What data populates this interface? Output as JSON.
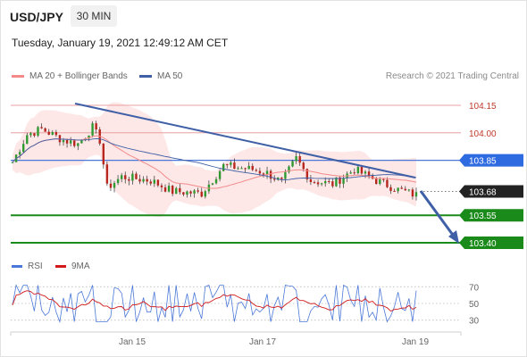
{
  "header": {
    "symbol": "USD/JPY",
    "timeframe": "30 MIN",
    "datetime": "Tuesday, January 19, 2021 12:49:12 AM CET"
  },
  "legend": {
    "ma20_label": "MA 20 + Bollinger Bands",
    "ma50_label": "MA 50",
    "credit": "Research © 2021 Trading Central"
  },
  "rsi_legend": {
    "rsi_label": "RSI",
    "ma9_label": "9MA"
  },
  "colors": {
    "ma20": "#f28a8a",
    "ma50": "#3f5fa6",
    "bollinger_fill": "#fde3e3",
    "bullish_candle": "#2f9a2f",
    "bearish_candle": "#b8261d",
    "support": "#1a8a1a",
    "resistance": "#e8a0a0",
    "pivot": "#4a78d8",
    "current": "#222222",
    "trendline": "#3f5fa6",
    "rsi": "#4a78d8",
    "rsi_ma": "#d11a1a"
  },
  "chart_data": {
    "type": "candlestick",
    "y_range": [
      103.28,
      104.24
    ],
    "levels": [
      {
        "label": "104.15",
        "value": 104.15,
        "kind": "resistance"
      },
      {
        "label": "104.00",
        "value": 104.0,
        "kind": "resistance"
      },
      {
        "label": "103.85",
        "value": 103.85,
        "kind": "pivot"
      },
      {
        "label": "103.68",
        "value": 103.68,
        "kind": "current"
      },
      {
        "label": "103.55",
        "value": 103.55,
        "kind": "support"
      },
      {
        "label": "103.40",
        "value": 103.4,
        "kind": "support"
      }
    ],
    "x_labels": [
      "Jan 15",
      "Jan 17",
      "Jan 19"
    ],
    "rsi_ticks": [
      70,
      50,
      30
    ],
    "rsi_range": [
      20,
      80
    ]
  }
}
